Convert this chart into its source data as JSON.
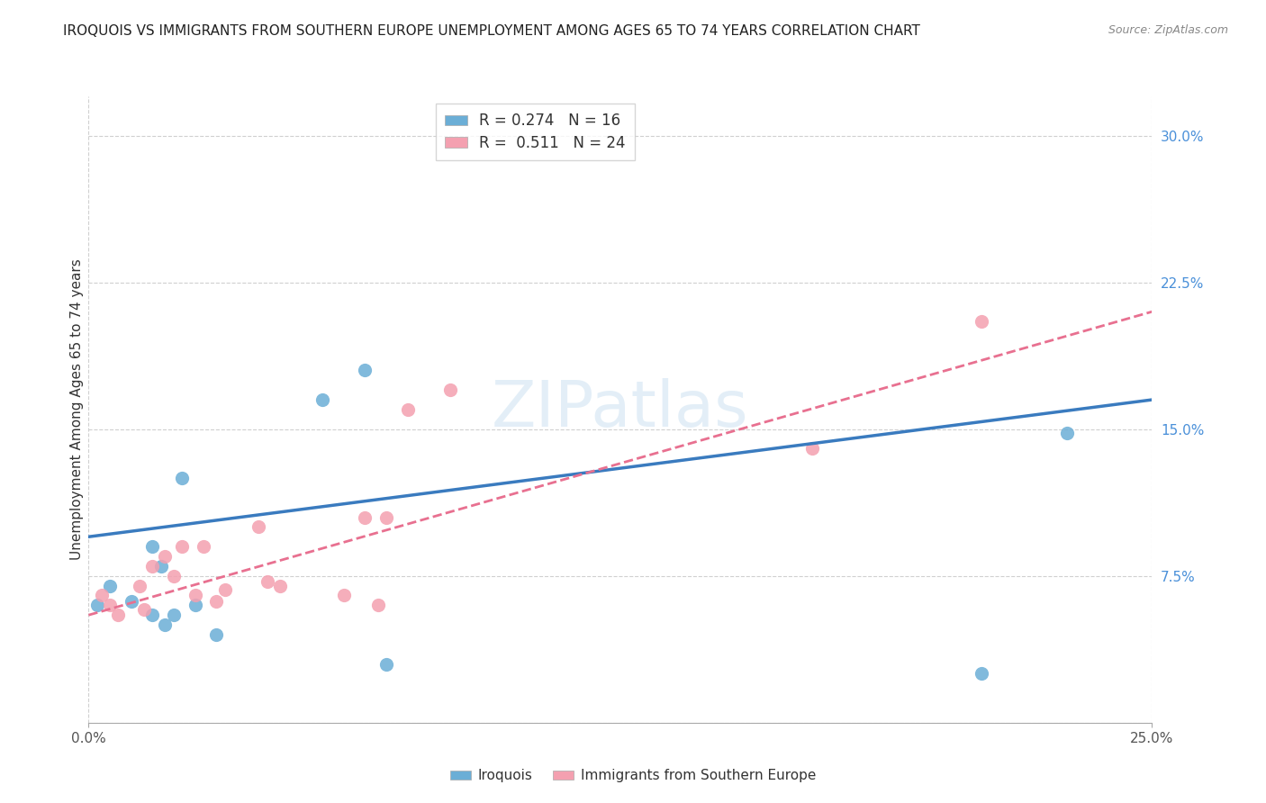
{
  "title": "IROQUOIS VS IMMIGRANTS FROM SOUTHERN EUROPE UNEMPLOYMENT AMONG AGES 65 TO 74 YEARS CORRELATION CHART",
  "source": "Source: ZipAtlas.com",
  "ylabel": "Unemployment Among Ages 65 to 74 years",
  "xlim": [
    0.0,
    0.25
  ],
  "ylim": [
    0.0,
    0.32
  ],
  "yticks": [
    0.0,
    0.075,
    0.15,
    0.225,
    0.3
  ],
  "ytick_labels": [
    "",
    "7.5%",
    "15.0%",
    "22.5%",
    "30.0%"
  ],
  "xticks": [
    0.0,
    0.25
  ],
  "xtick_labels": [
    "0.0%",
    "25.0%"
  ],
  "bg_color": "#ffffff",
  "grid_color": "#d0d0d0",
  "iroquois_color": "#6baed6",
  "immigrants_color": "#f4a0b0",
  "iroquois_R": 0.274,
  "iroquois_N": 16,
  "immigrants_R": 0.511,
  "immigrants_N": 24,
  "iroquois_line_color": "#3a7bbf",
  "immigrants_line_color": "#e87090",
  "watermark": "ZIPatlas",
  "iroquois_x": [
    0.002,
    0.005,
    0.01,
    0.015,
    0.015,
    0.017,
    0.018,
    0.02,
    0.022,
    0.025,
    0.03,
    0.055,
    0.065,
    0.07,
    0.21,
    0.23
  ],
  "iroquois_y": [
    0.06,
    0.07,
    0.062,
    0.09,
    0.055,
    0.08,
    0.05,
    0.055,
    0.125,
    0.06,
    0.045,
    0.165,
    0.18,
    0.03,
    0.025,
    0.148
  ],
  "immigrants_x": [
    0.003,
    0.005,
    0.007,
    0.012,
    0.013,
    0.015,
    0.018,
    0.02,
    0.022,
    0.025,
    0.027,
    0.03,
    0.032,
    0.04,
    0.042,
    0.045,
    0.06,
    0.065,
    0.068,
    0.07,
    0.075,
    0.085,
    0.17,
    0.21
  ],
  "immigrants_y": [
    0.065,
    0.06,
    0.055,
    0.07,
    0.058,
    0.08,
    0.085,
    0.075,
    0.09,
    0.065,
    0.09,
    0.062,
    0.068,
    0.1,
    0.072,
    0.07,
    0.065,
    0.105,
    0.06,
    0.105,
    0.16,
    0.17,
    0.14,
    0.205
  ],
  "iroquois_line_intercept": 0.095,
  "iroquois_line_slope": 0.28,
  "immigrants_line_intercept": 0.055,
  "immigrants_line_slope": 0.62
}
